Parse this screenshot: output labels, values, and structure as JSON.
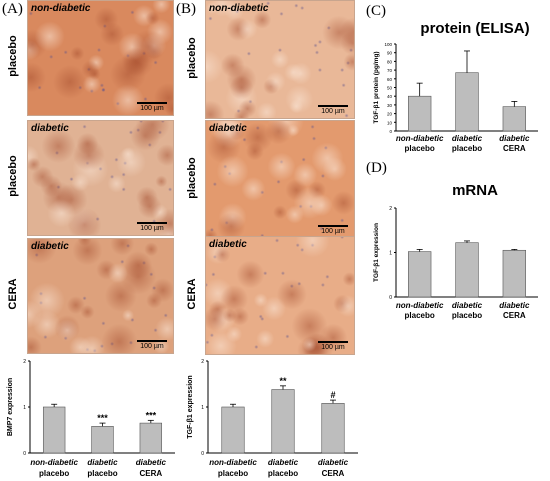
{
  "panels": {
    "A": "(A)",
    "B": "(B)",
    "C": "(C)",
    "D": "(D)"
  },
  "micrographs": {
    "A": [
      {
        "tag": "non-diabetic",
        "row": "placebo",
        "scale": "100 µm",
        "tint": "#d9895e"
      },
      {
        "tag": "diabetic",
        "row": "placebo",
        "scale": "100 µm",
        "tint": "#e0b294"
      },
      {
        "tag": "diabetic",
        "row": "CERA",
        "scale": "100 µm",
        "tint": "#dda17c"
      }
    ],
    "B": [
      {
        "tag": "non-diabetic",
        "row": "placebo",
        "scale": "100 µm",
        "tint": "#e9b898"
      },
      {
        "tag": "diabetic",
        "row": "placebo",
        "scale": "100 µm",
        "tint": "#e39a6e"
      },
      {
        "tag": "diabetic",
        "row": "CERA",
        "scale": "100 µm",
        "tint": "#e8ad88"
      }
    ]
  },
  "chart_data": [
    {
      "id": "bmp7",
      "type": "bar",
      "title": "",
      "ylabel": "BMP7 expression",
      "ylim": [
        0,
        2
      ],
      "yticks": [
        "0",
        "1",
        "2"
      ],
      "categories": [
        [
          "non-diabetic",
          "placebo"
        ],
        [
          "diabetic",
          "placebo"
        ],
        [
          "diabetic",
          "CERA"
        ]
      ],
      "values": [
        1.0,
        0.58,
        0.65
      ],
      "errors": [
        0.06,
        0.07,
        0.06
      ],
      "annotations": [
        "",
        "***",
        "***"
      ],
      "bar_color": "#bdbdbd"
    },
    {
      "id": "tgf-b",
      "type": "bar",
      "title": "",
      "ylabel": "TGF-β1 expression",
      "ylim": [
        0,
        2
      ],
      "yticks": [
        "0",
        "1",
        "2"
      ],
      "categories": [
        [
          "non-diabetic",
          "placebo"
        ],
        [
          "diabetic",
          "placebo"
        ],
        [
          "diabetic",
          "CERA"
        ]
      ],
      "values": [
        1.0,
        1.38,
        1.08
      ],
      "errors": [
        0.06,
        0.08,
        0.07
      ],
      "annotations": [
        "",
        "**",
        "#"
      ],
      "bar_color": "#bdbdbd"
    },
    {
      "id": "elisa",
      "type": "bar",
      "title": "protein (ELISA)",
      "ylabel": "TGF-β1 protein (pg/mg)",
      "ylim": [
        0,
        100
      ],
      "yticks": [
        "0",
        "10",
        "20",
        "30",
        "40",
        "50",
        "60",
        "70",
        "80",
        "90",
        "100"
      ],
      "categories": [
        [
          "non-diabetic",
          "placebo"
        ],
        [
          "diabetic",
          "placebo"
        ],
        [
          "diabetic",
          "CERA"
        ]
      ],
      "values": [
        40,
        67,
        28
      ],
      "errors": [
        15,
        25,
        6
      ],
      "annotations": [
        "",
        "",
        ""
      ],
      "bar_color": "#bdbdbd"
    },
    {
      "id": "mrna",
      "type": "bar",
      "title": "mRNA",
      "ylabel": "TGF-β1 expression",
      "ylim": [
        0,
        2
      ],
      "yticks": [
        "0",
        "1",
        "2"
      ],
      "categories": [
        [
          "non-diabetic",
          "placebo"
        ],
        [
          "diabetic",
          "placebo"
        ],
        [
          "diabetic",
          "CERA"
        ]
      ],
      "values": [
        1.02,
        1.22,
        1.05
      ],
      "errors": [
        0.05,
        0.04,
        0.02
      ],
      "annotations": [
        "",
        "",
        ""
      ],
      "bar_color": "#bdbdbd"
    }
  ]
}
